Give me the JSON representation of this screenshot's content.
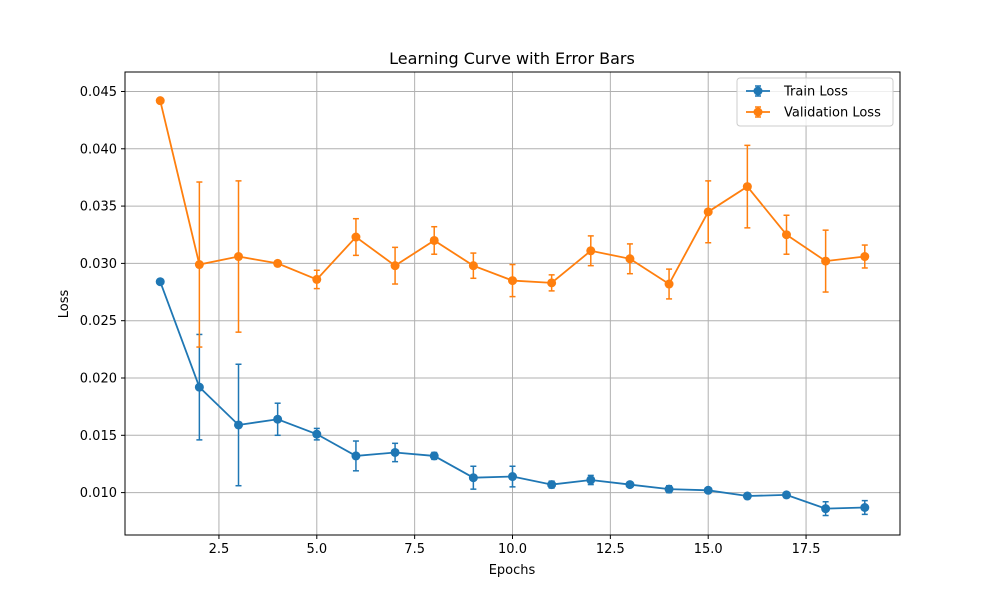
{
  "chart_data": {
    "type": "line",
    "title": "Learning Curve with Error Bars",
    "xlabel": "Epochs",
    "ylabel": "Loss",
    "xlim": [
      0.1,
      19.9
    ],
    "ylim": [
      0.0063,
      0.0467
    ],
    "xticks": [
      2.5,
      5.0,
      7.5,
      10.0,
      12.5,
      15.0,
      17.5
    ],
    "xtick_labels": [
      "2.5",
      "5.0",
      "7.5",
      "10.0",
      "12.5",
      "15.0",
      "17.5"
    ],
    "yticks": [
      0.01,
      0.015,
      0.02,
      0.025,
      0.03,
      0.035,
      0.04,
      0.045
    ],
    "ytick_labels": [
      "0.010",
      "0.015",
      "0.020",
      "0.025",
      "0.030",
      "0.035",
      "0.040",
      "0.045"
    ],
    "grid": true,
    "legend_position": "top-right",
    "x": [
      1,
      2,
      3,
      4,
      5,
      6,
      7,
      8,
      9,
      10,
      11,
      12,
      13,
      14,
      15,
      16,
      17,
      18,
      19
    ],
    "series": [
      {
        "name": "Train Loss",
        "color": "#1f77b4",
        "values": [
          0.0284,
          0.0192,
          0.0159,
          0.0164,
          0.0151,
          0.0132,
          0.0135,
          0.0132,
          0.0113,
          0.0114,
          0.0107,
          0.0111,
          0.0107,
          0.0103,
          0.0102,
          0.0097,
          0.0098,
          0.0086,
          0.0087
        ],
        "errors": [
          0,
          0.0046,
          0.0053,
          0.0014,
          0.0005,
          0.0013,
          0.0008,
          0.0003,
          0.001,
          0.0009,
          0.0003,
          0.0004,
          0.0002,
          0.0003,
          0.0002,
          0.0002,
          0.0002,
          0.0006,
          0.0006
        ]
      },
      {
        "name": "Validation Loss",
        "color": "#ff7f0e",
        "values": [
          0.0442,
          0.0299,
          0.0306,
          0.03,
          0.0286,
          0.0323,
          0.0298,
          0.032,
          0.0298,
          0.0285,
          0.0283,
          0.0311,
          0.0304,
          0.0282,
          0.0345,
          0.0367,
          0.0325,
          0.0302,
          0.0306
        ],
        "errors": [
          0,
          0.0072,
          0.0066,
          0.0002,
          0.0008,
          0.0016,
          0.0016,
          0.0012,
          0.0011,
          0.0014,
          0.0007,
          0.0013,
          0.0013,
          0.0013,
          0.0027,
          0.0036,
          0.0017,
          0.0027,
          0.001
        ]
      }
    ]
  }
}
